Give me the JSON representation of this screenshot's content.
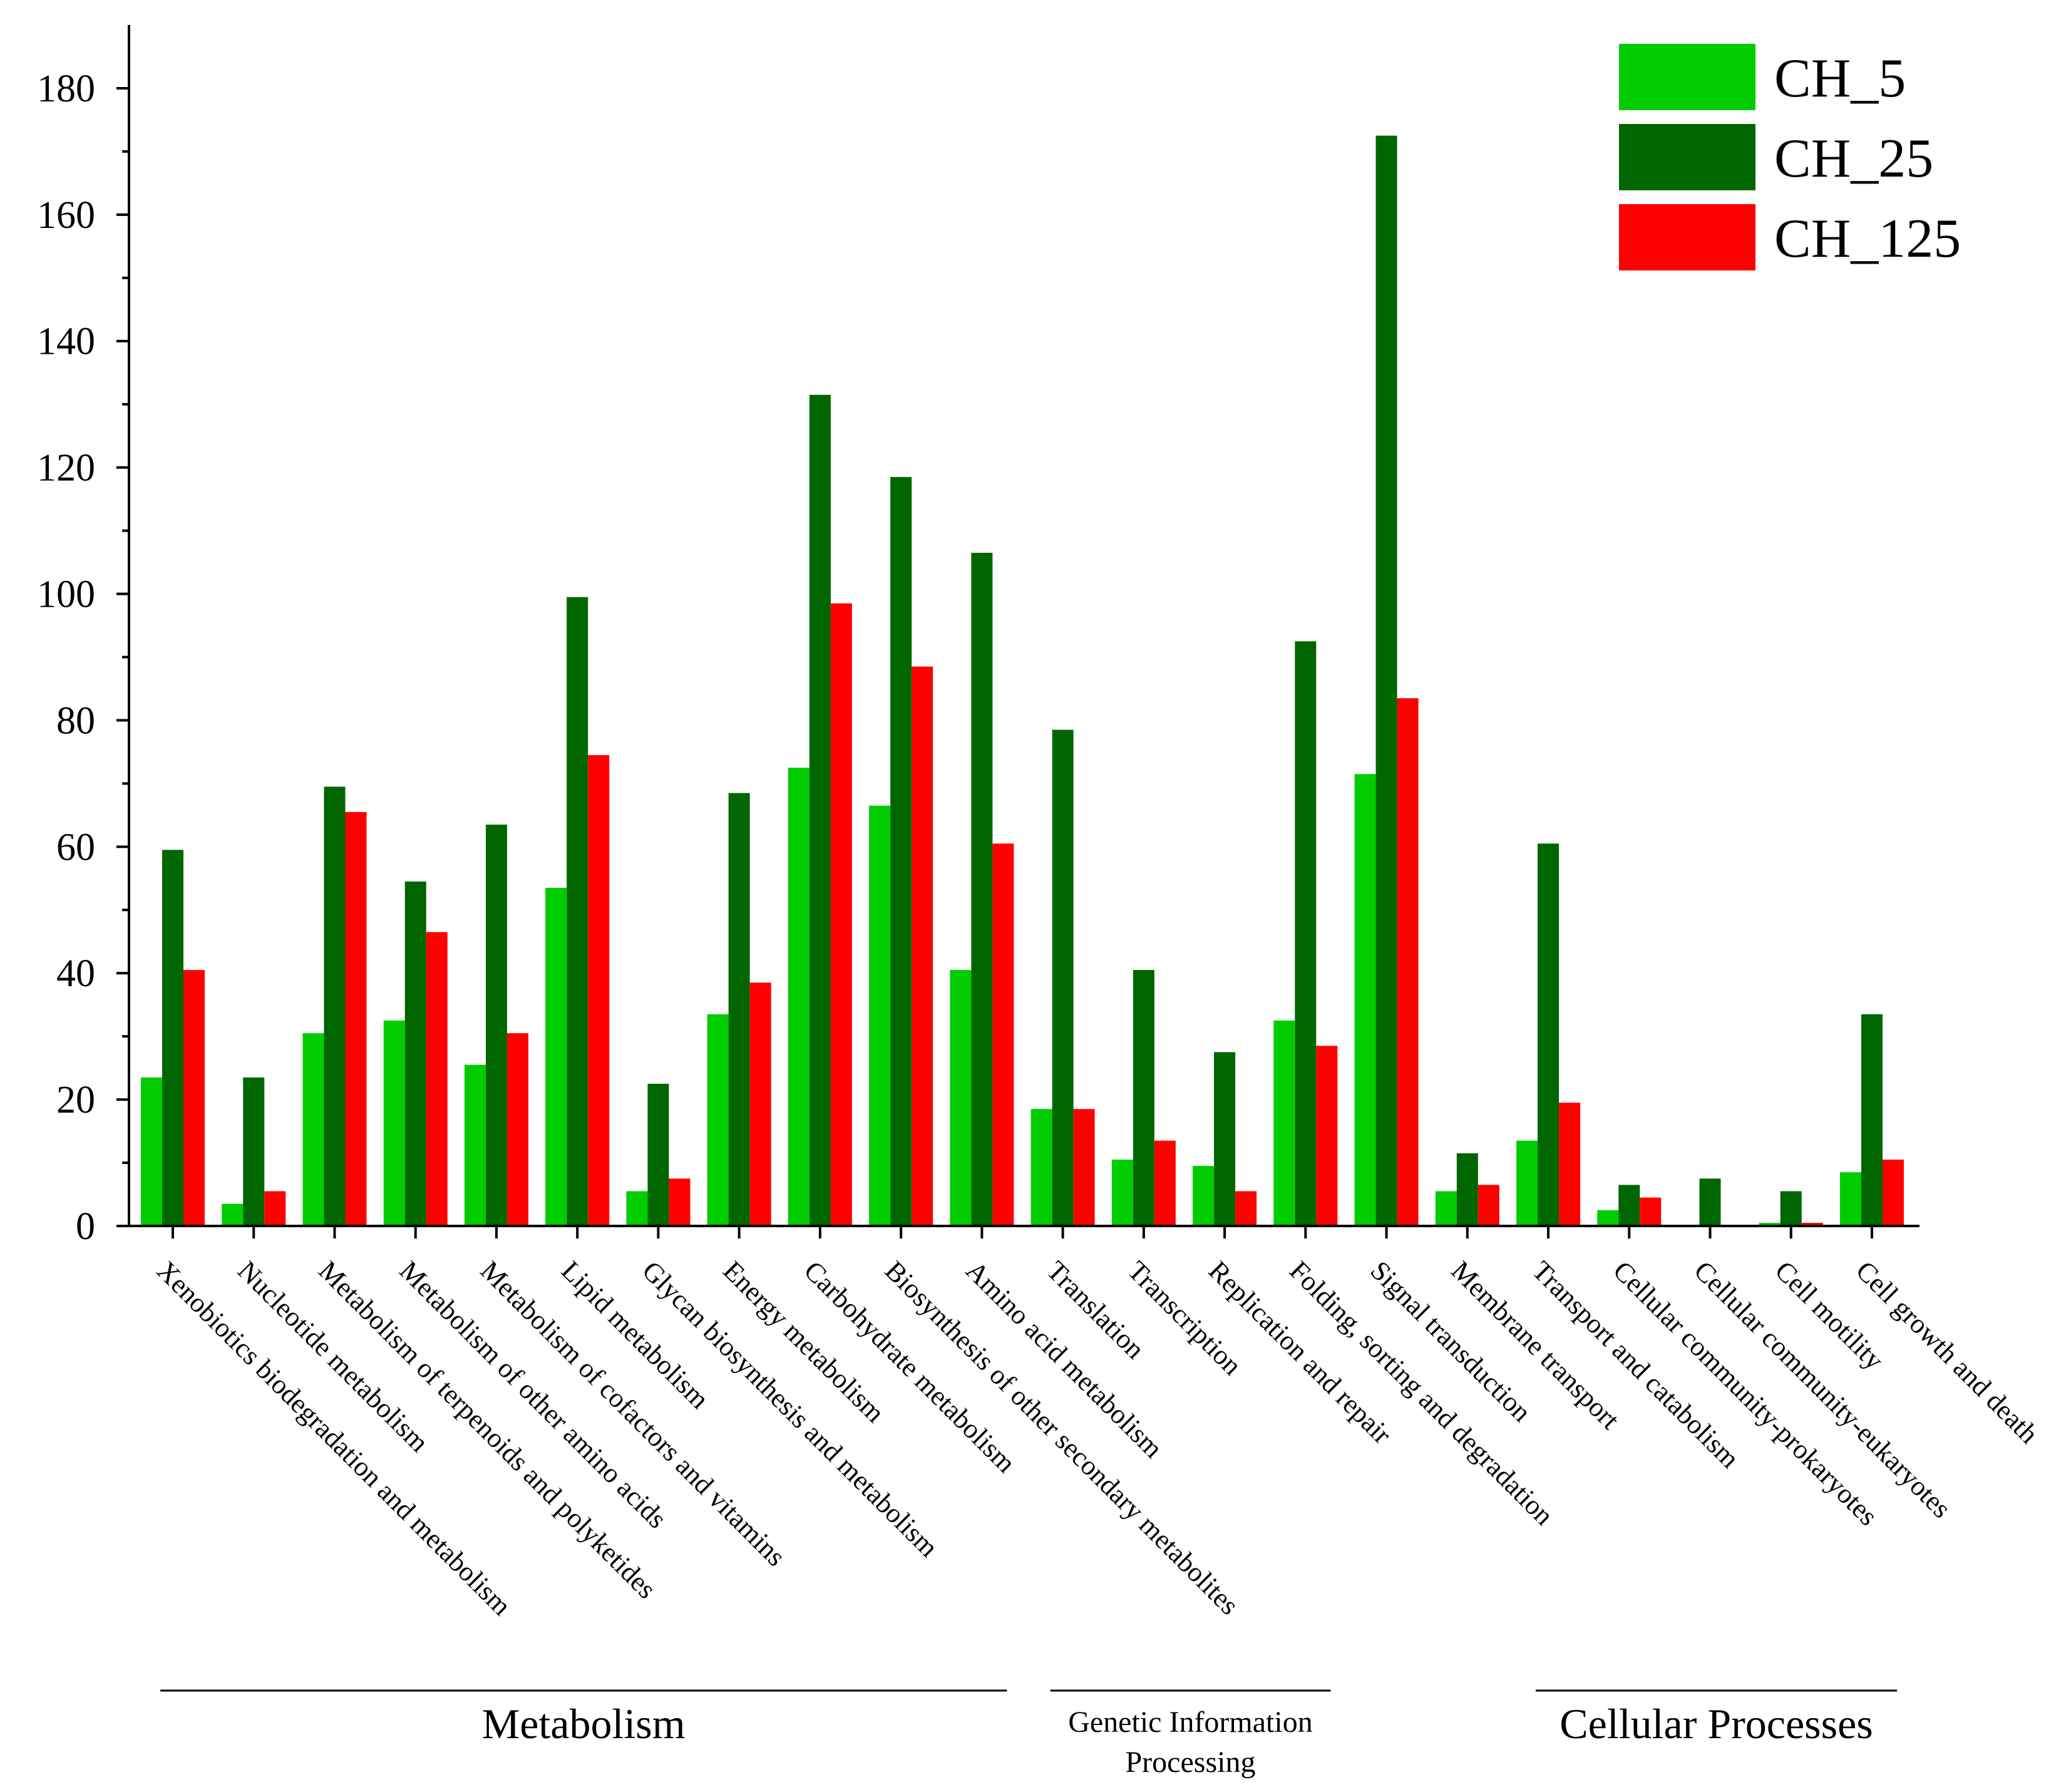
{
  "chart_data": {
    "type": "bar",
    "title": "",
    "xlabel": "",
    "ylabel": "",
    "ylim": [
      0,
      190
    ],
    "yticks": [
      0,
      20,
      40,
      60,
      80,
      100,
      120,
      140,
      160,
      180
    ],
    "categories": [
      "Xenobiotics biodegradation and metabolism",
      "Nucleotide metabolism",
      "Metabolism of terpenoids and polyketides",
      "Metabolism of other amino acids",
      "Metabolism of cofactors and vitamins",
      "Lipid metabolism",
      "Glycan biosynthesis and metabolism",
      "Energy metabolism",
      "Carbohydrate metabolism",
      "Biosynthesis of other secondary metabolites",
      "Amino acid metabolism",
      "Translation",
      "Transcription",
      "Replication and repair",
      "Folding, sorting and degradation",
      "Signal transduction",
      "Membrane transport",
      "Transport and catabolism",
      "Cellular community-prokaryotes",
      "Cellular community-eukaryotes",
      "Cell motility",
      "Cell growth and death"
    ],
    "series": [
      {
        "name": "CH_5",
        "color": "#00CC00",
        "values": [
          23.5,
          3.5,
          30.5,
          32.5,
          25.5,
          53.5,
          5.5,
          33.5,
          72.5,
          66.5,
          40.5,
          18.5,
          10.5,
          9.5,
          32.5,
          71.5,
          5.5,
          13.5,
          2.5,
          0,
          0.5,
          8.5
        ]
      },
      {
        "name": "CH_25",
        "color": "#006600",
        "values": [
          59.5,
          23.5,
          69.5,
          54.5,
          63.5,
          99.5,
          22.5,
          68.5,
          131.5,
          118.5,
          106.5,
          78.5,
          40.5,
          27.5,
          92.5,
          172.5,
          11.5,
          60.5,
          6.5,
          7.5,
          5.5,
          33.5
        ]
      },
      {
        "name": "CH_125",
        "color": "#FF0000",
        "values": [
          40.5,
          5.5,
          65.5,
          46.5,
          30.5,
          74.5,
          7.5,
          38.5,
          98.5,
          88.5,
          60.5,
          18.5,
          13.5,
          5.5,
          28.5,
          83.5,
          6.5,
          19.5,
          4.5,
          0,
          0.5,
          10.5
        ]
      }
    ],
    "legend": {
      "position": "top-right",
      "labels": [
        "CH_5",
        "CH_25",
        "CH_125"
      ]
    },
    "groups": [
      {
        "name": "Metabolism",
        "lines": [
          "Metabolism"
        ],
        "from": 0,
        "to": 10
      },
      {
        "name": "Genetic Information Processing",
        "lines": [
          "Genetic Information",
          "Processing"
        ],
        "from": 11,
        "to": 14
      },
      {
        "name": "Cellular Processes",
        "lines": [
          "Cellular Processes"
        ],
        "from": 17,
        "to": 21
      }
    ]
  }
}
